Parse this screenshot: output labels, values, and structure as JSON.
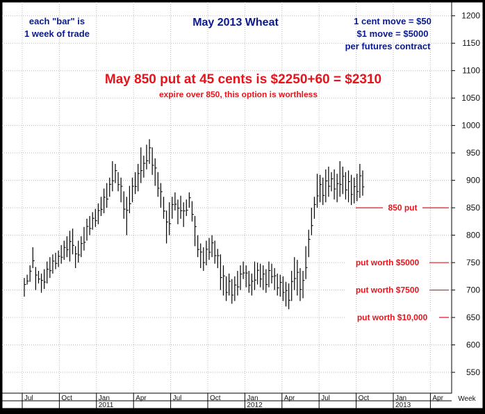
{
  "chart_data": {
    "type": "ohlc-bar",
    "title": "May 2013 Wheat",
    "x_unit_label": "Week",
    "yticks": [
      550,
      600,
      650,
      700,
      750,
      800,
      850,
      900,
      950,
      1000,
      1050,
      1100,
      1150,
      1200
    ],
    "ylim": [
      512,
      1225
    ],
    "x_month_ticks": [
      "Jul",
      "Oct",
      "Jan",
      "Apr",
      "Jul",
      "Oct",
      "Jan",
      "Apr",
      "Jul",
      "Oct",
      "Jan",
      "Apr"
    ],
    "x_year_labels": [
      "2011",
      "2012",
      "2013"
    ],
    "grid": true,
    "weekly_low_high": [
      [
        688,
        722
      ],
      [
        710,
        728
      ],
      [
        715,
        745
      ],
      [
        740,
        778
      ],
      [
        700,
        742
      ],
      [
        712,
        735
      ],
      [
        695,
        730
      ],
      [
        702,
        738
      ],
      [
        712,
        752
      ],
      [
        722,
        760
      ],
      [
        730,
        765
      ],
      [
        738,
        768
      ],
      [
        742,
        772
      ],
      [
        748,
        782
      ],
      [
        755,
        790
      ],
      [
        760,
        798
      ],
      [
        752,
        808
      ],
      [
        765,
        812
      ],
      [
        740,
        780
      ],
      [
        750,
        790
      ],
      [
        760,
        798
      ],
      [
        772,
        815
      ],
      [
        790,
        830
      ],
      [
        800,
        835
      ],
      [
        810,
        842
      ],
      [
        815,
        848
      ],
      [
        820,
        858
      ],
      [
        835,
        870
      ],
      [
        840,
        885
      ],
      [
        850,
        895
      ],
      [
        870,
        905
      ],
      [
        880,
        935
      ],
      [
        895,
        930
      ],
      [
        880,
        915
      ],
      [
        860,
        905
      ],
      [
        830,
        880
      ],
      [
        800,
        870
      ],
      [
        840,
        890
      ],
      [
        860,
        905
      ],
      [
        875,
        915
      ],
      [
        880,
        930
      ],
      [
        895,
        960
      ],
      [
        905,
        945
      ],
      [
        920,
        965
      ],
      [
        930,
        975
      ],
      [
        910,
        960
      ],
      [
        890,
        940
      ],
      [
        870,
        915
      ],
      [
        850,
        895
      ],
      [
        830,
        870
      ],
      [
        785,
        845
      ],
      [
        800,
        860
      ],
      [
        830,
        870
      ],
      [
        845,
        878
      ],
      [
        820,
        865
      ],
      [
        830,
        872
      ],
      [
        815,
        860
      ],
      [
        835,
        865
      ],
      [
        850,
        878
      ],
      [
        825,
        862
      ],
      [
        780,
        835
      ],
      [
        760,
        800
      ],
      [
        740,
        785
      ],
      [
        735,
        778
      ],
      [
        745,
        790
      ],
      [
        755,
        795
      ],
      [
        760,
        800
      ],
      [
        748,
        790
      ],
      [
        740,
        775
      ],
      [
        700,
        765
      ],
      [
        690,
        745
      ],
      [
        680,
        725
      ],
      [
        690,
        730
      ],
      [
        675,
        720
      ],
      [
        680,
        725
      ],
      [
        690,
        735
      ],
      [
        700,
        745
      ],
      [
        720,
        752
      ],
      [
        705,
        745
      ],
      [
        695,
        735
      ],
      [
        690,
        730
      ],
      [
        700,
        752
      ],
      [
        710,
        750
      ],
      [
        705,
        748
      ],
      [
        700,
        745
      ],
      [
        695,
        738
      ],
      [
        705,
        752
      ],
      [
        712,
        748
      ],
      [
        700,
        740
      ],
      [
        690,
        730
      ],
      [
        688,
        728
      ],
      [
        680,
        725
      ],
      [
        670,
        715
      ],
      [
        665,
        712
      ],
      [
        680,
        735
      ],
      [
        700,
        760
      ],
      [
        690,
        755
      ],
      [
        680,
        740
      ],
      [
        685,
        735
      ],
      [
        720,
        780
      ],
      [
        760,
        810
      ],
      [
        800,
        850
      ],
      [
        830,
        870
      ],
      [
        850,
        912
      ],
      [
        860,
        910
      ],
      [
        855,
        905
      ],
      [
        860,
        920
      ],
      [
        870,
        925
      ],
      [
        880,
        915
      ],
      [
        865,
        920
      ],
      [
        860,
        912
      ],
      [
        870,
        935
      ],
      [
        875,
        925
      ],
      [
        865,
        915
      ],
      [
        860,
        918
      ],
      [
        855,
        910
      ],
      [
        858,
        905
      ],
      [
        862,
        912
      ],
      [
        868,
        930
      ],
      [
        872,
        918
      ]
    ],
    "annotations": [
      {
        "text": "each \"bar\" is",
        "color": "#0a1a8c"
      },
      {
        "text": "1 week of trade",
        "color": "#0a1a8c"
      },
      {
        "text": "1 cent move = $50",
        "color": "#0a1a8c"
      },
      {
        "text": "$1 move = $5000",
        "color": "#0a1a8c"
      },
      {
        "text": "per futures contract",
        "color": "#0a1a8c"
      },
      {
        "text": "May 850 put at 45 cents is $2250+60 = $2310",
        "color": "#e8141b"
      },
      {
        "text": "expire over 850, this option is worthless",
        "color": "#e8141b"
      }
    ],
    "reference_lines": [
      {
        "level": 850,
        "label": "850 put"
      },
      {
        "level": 750,
        "label": "put worth $5000"
      },
      {
        "level": 700,
        "label": "put worth $7500"
      },
      {
        "level": 650,
        "label": "put worth $10,000"
      }
    ],
    "colors": {
      "bars": "#000000",
      "reference": "#e8141b",
      "grid": "#b9b9b9",
      "background": "#ffffff",
      "frame": "#000000"
    }
  }
}
